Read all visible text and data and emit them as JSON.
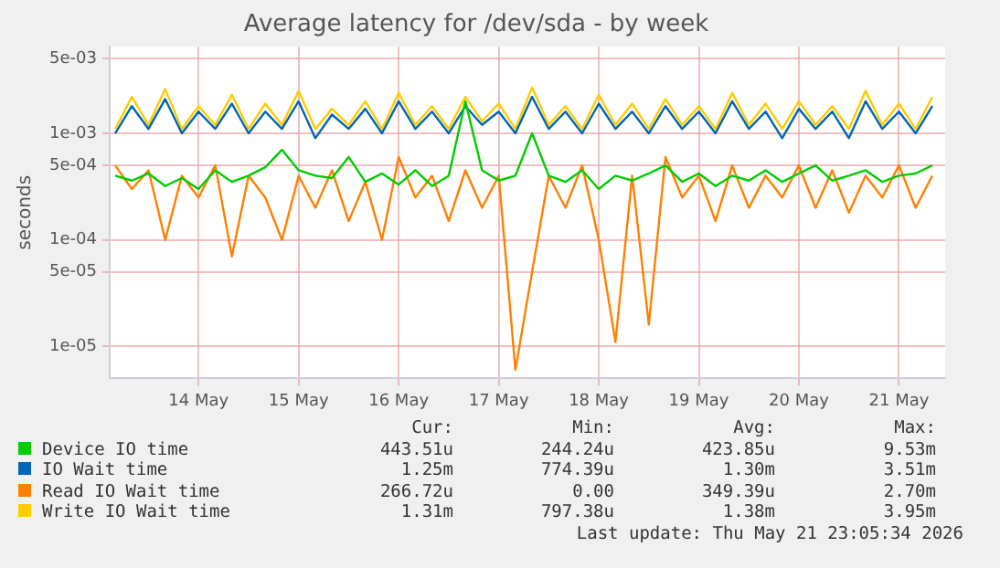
{
  "chart_data": {
    "type": "line",
    "title": "Average latency for /dev/sda - by week",
    "ylabel": "seconds",
    "x": [
      "2026-05-13T16:00",
      "2026-05-13T20:00",
      "2026-05-14T00:00",
      "2026-05-14T04:00",
      "2026-05-14T08:00",
      "2026-05-14T12:00",
      "2026-05-14T16:00",
      "2026-05-14T20:00",
      "2026-05-15T00:00",
      "2026-05-15T04:00",
      "2026-05-15T08:00",
      "2026-05-15T12:00",
      "2026-05-15T16:00",
      "2026-05-15T20:00",
      "2026-05-16T00:00",
      "2026-05-16T04:00",
      "2026-05-16T08:00",
      "2026-05-16T12:00",
      "2026-05-16T16:00",
      "2026-05-16T20:00",
      "2026-05-17T00:00",
      "2026-05-17T04:00",
      "2026-05-17T08:00",
      "2026-05-17T12:00",
      "2026-05-17T16:00",
      "2026-05-17T20:00",
      "2026-05-18T00:00",
      "2026-05-18T04:00",
      "2026-05-18T08:00",
      "2026-05-18T12:00",
      "2026-05-18T16:00",
      "2026-05-18T20:00",
      "2026-05-19T00:00",
      "2026-05-19T04:00",
      "2026-05-19T08:00",
      "2026-05-19T12:00",
      "2026-05-19T16:00",
      "2026-05-19T20:00",
      "2026-05-20T00:00",
      "2026-05-20T04:00",
      "2026-05-20T08:00",
      "2026-05-20T12:00",
      "2026-05-20T16:00",
      "2026-05-20T20:00",
      "2026-05-21T00:00",
      "2026-05-21T04:00",
      "2026-05-21T08:00",
      "2026-05-21T12:00",
      "2026-05-21T16:00",
      "2026-05-21T20:00"
    ],
    "series": [
      {
        "name": "Device IO time",
        "color": "#00cc00",
        "values": [
          0.0004,
          0.00036,
          0.00042,
          0.00032,
          0.00038,
          0.0003,
          0.00045,
          0.00035,
          0.0004,
          0.00048,
          0.0007,
          0.00045,
          0.0004,
          0.00038,
          0.0006,
          0.00035,
          0.00042,
          0.00033,
          0.00045,
          0.00032,
          0.0004,
          0.002,
          0.00045,
          0.00036,
          0.0004,
          0.001,
          0.0004,
          0.00035,
          0.00045,
          0.0003,
          0.0004,
          0.00036,
          0.00042,
          0.0005,
          0.00035,
          0.00042,
          0.00032,
          0.0004,
          0.00036,
          0.00045,
          0.00035,
          0.00042,
          0.0005,
          0.00036,
          0.0004,
          0.00045,
          0.00035,
          0.0004,
          0.00042,
          0.0005
        ]
      },
      {
        "name": "IO Wait time",
        "color": "#0066b3",
        "values": [
          0.001,
          0.0018,
          0.0011,
          0.0021,
          0.001,
          0.0016,
          0.0011,
          0.0019,
          0.001,
          0.0016,
          0.0011,
          0.002,
          0.0009,
          0.0015,
          0.0011,
          0.0017,
          0.001,
          0.002,
          0.0011,
          0.0016,
          0.001,
          0.0018,
          0.0012,
          0.0016,
          0.001,
          0.0022,
          0.0011,
          0.0016,
          0.001,
          0.0019,
          0.0011,
          0.0016,
          0.001,
          0.0018,
          0.0011,
          0.0016,
          0.001,
          0.002,
          0.0011,
          0.0016,
          0.0009,
          0.0017,
          0.0011,
          0.0016,
          0.0009,
          0.002,
          0.0011,
          0.0016,
          0.001,
          0.0018
        ]
      },
      {
        "name": "Read IO Wait time",
        "color": "#ff8000",
        "values": [
          0.0005,
          0.0003,
          0.00045,
          0.0001,
          0.0004,
          0.00025,
          0.0005,
          7e-05,
          0.0004,
          0.00025,
          0.0001,
          0.0004,
          0.0002,
          0.00045,
          0.00015,
          0.00035,
          0.0001,
          0.0006,
          0.00025,
          0.0004,
          0.00015,
          0.00045,
          0.0002,
          0.0004,
          6e-06,
          5e-05,
          0.0004,
          0.0002,
          0.0005,
          0.0001,
          1.1e-05,
          0.0004,
          1.6e-05,
          0.0006,
          0.00025,
          0.0004,
          0.00015,
          0.0005,
          0.0002,
          0.0004,
          0.00025,
          0.0005,
          0.0002,
          0.00045,
          0.00018,
          0.0004,
          0.00025,
          0.0005,
          0.0002,
          0.0004
        ]
      },
      {
        "name": "Write IO Wait time",
        "color": "#ffcc00",
        "values": [
          0.0011,
          0.0022,
          0.0012,
          0.0026,
          0.0011,
          0.0018,
          0.0012,
          0.0023,
          0.0011,
          0.0019,
          0.0012,
          0.0025,
          0.0011,
          0.0017,
          0.0012,
          0.002,
          0.0011,
          0.0024,
          0.0012,
          0.0018,
          0.0011,
          0.0022,
          0.0013,
          0.0019,
          0.0011,
          0.0027,
          0.0012,
          0.0018,
          0.0011,
          0.0023,
          0.0012,
          0.0019,
          0.0011,
          0.0021,
          0.0012,
          0.0018,
          0.0011,
          0.0024,
          0.0012,
          0.0019,
          0.0011,
          0.002,
          0.0012,
          0.0018,
          0.0011,
          0.0025,
          0.0012,
          0.0019,
          0.0011,
          0.0022
        ]
      }
    ],
    "log": "y",
    "ylim": [
      5e-06,
      0.0065
    ],
    "yticks": [
      {
        "value": 0.005,
        "label": "5e-03"
      },
      {
        "value": 0.001,
        "label": "1e-03"
      },
      {
        "value": 0.0005,
        "label": "5e-04"
      },
      {
        "value": 0.0001,
        "label": "1e-04"
      },
      {
        "value": 5e-05,
        "label": "5e-05"
      },
      {
        "value": 1e-05,
        "label": "1e-05"
      }
    ],
    "xlim": [
      "2026-05-13T14:40",
      "2026-05-21T23:05"
    ],
    "xticks": [
      {
        "value": "2026-05-14T12:00",
        "label": "14 May"
      },
      {
        "value": "2026-05-15T12:00",
        "label": "15 May"
      },
      {
        "value": "2026-05-16T12:00",
        "label": "16 May"
      },
      {
        "value": "2026-05-17T12:00",
        "label": "17 May"
      },
      {
        "value": "2026-05-18T12:00",
        "label": "18 May"
      },
      {
        "value": "2026-05-19T12:00",
        "label": "19 May"
      },
      {
        "value": "2026-05-20T12:00",
        "label": "20 May"
      },
      {
        "value": "2026-05-21T12:00",
        "label": "21 May"
      }
    ],
    "grid": true,
    "legend": "bottom",
    "marker": "none",
    "line_style": "solid",
    "annotations": [
      "Cur:",
      "Min:",
      "Avg:",
      "Max:",
      "443.51u",
      "244.24u",
      "423.85u",
      "9.53m",
      "1.25m",
      "774.39u",
      "1.30m",
      "3.51m",
      "266.72u",
      "0.00",
      "349.39u",
      "2.70m",
      "1.31m",
      "797.38u",
      "1.38m",
      "3.95m",
      "Last update: Thu May 21 23:05:34 2026"
    ]
  }
}
